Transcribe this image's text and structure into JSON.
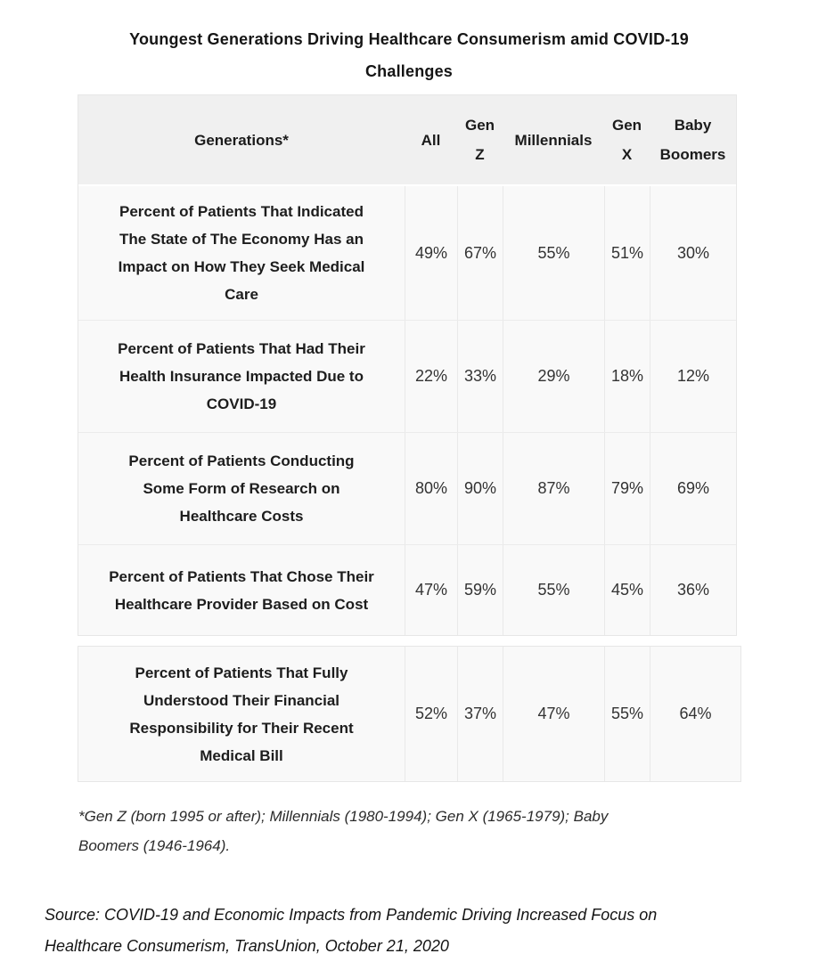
{
  "colors": {
    "page_bg": "#ffffff",
    "header_bg": "#f0f0f0",
    "body_bg": "#f9f9f9",
    "border": "#e7e7e7",
    "text": "#1c1c1c"
  },
  "chart_data": {
    "type": "table",
    "title": "Youngest Generations Driving Healthcare Consumerism amid COVID-19\nChallenges",
    "columns": [
      "Generations*",
      "All",
      "Gen\nZ",
      "Millennials",
      "Gen\nX",
      "Baby\nBoomers"
    ],
    "column_names_clean": [
      "Generations*",
      "All",
      "Gen Z",
      "Millennials",
      "Gen X",
      "Baby Boomers"
    ],
    "rows": [
      {
        "label": "Percent of Patients That Indicated\nThe State of The Economy Has an\nImpact on How They Seek Medical\nCare",
        "values": [
          "49%",
          "67%",
          "55%",
          "51%",
          "30%"
        ],
        "values_numeric": [
          49,
          67,
          55,
          51,
          30
        ]
      },
      {
        "label": "Percent of Patients That Had Their\nHealth Insurance Impacted Due to\nCOVID-19",
        "values": [
          "22%",
          "33%",
          "29%",
          "18%",
          "12%"
        ],
        "values_numeric": [
          22,
          33,
          29,
          18,
          12
        ]
      },
      {
        "label": "Percent of Patients Conducting\nSome Form of Research on\nHealthcare Costs",
        "values": [
          "80%",
          "90%",
          "87%",
          "79%",
          "69%"
        ],
        "values_numeric": [
          80,
          90,
          87,
          79,
          69
        ]
      },
      {
        "label": "Percent of Patients That Chose Their\nHealthcare Provider Based on Cost",
        "values": [
          "47%",
          "59%",
          "55%",
          "45%",
          "36%"
        ],
        "values_numeric": [
          47,
          59,
          55,
          45,
          36
        ]
      },
      {
        "label": "Percent of Patients That Fully\nUnderstood Their Financial\nResponsibility for Their Recent\nMedical Bill",
        "values": [
          "52%",
          "37%",
          "47%",
          "55%",
          "64%"
        ],
        "values_numeric": [
          52,
          37,
          47,
          55,
          64
        ]
      }
    ],
    "footnote": "*Gen Z (born 1995 or after); Millennials (1980-1994); Gen X (1965-1979); Baby\nBoomers (1946-1964).",
    "source": "Source: COVID-19 and Economic Impacts from Pandemic Driving Increased Focus on\nHealthcare Consumerism, TransUnion, October 21, 2020",
    "legend_position": "none",
    "grid": "table-borders"
  }
}
